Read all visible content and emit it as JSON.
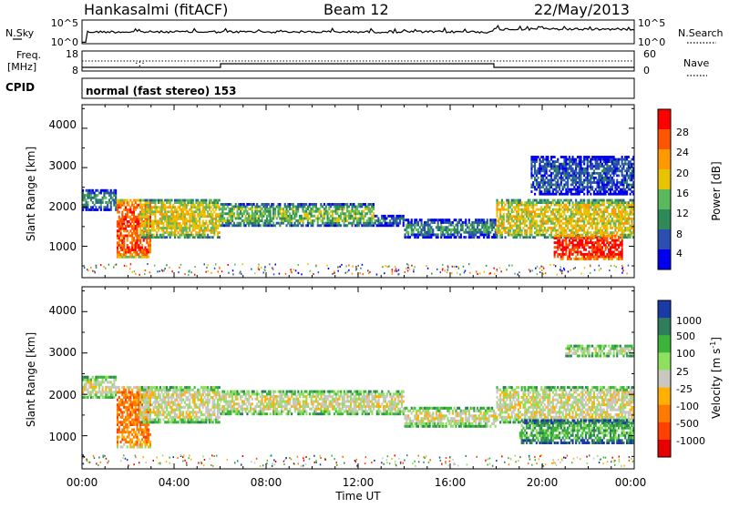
{
  "header": {
    "station": "Hankasalmi (fitACF)",
    "beam": "Beam 12",
    "date": "22/May/2013"
  },
  "top_panels": {
    "nsky_label": "N.Sky",
    "nsky_ticks": [
      "10^5",
      "10^0"
    ],
    "nsearch_ticks": [
      "10^5",
      "10^0"
    ],
    "nsearch_label": "N.Search",
    "freq_label_1": "Freq.",
    "freq_label_2": "[MHz]",
    "freq_ticks": [
      "18",
      "8"
    ],
    "nave_ticks": [
      "60",
      "0"
    ],
    "nave_label": "Nave",
    "cpid_label": "CPID",
    "cpid_text": "normal (fast stereo) 153"
  },
  "axes": {
    "ylabel": "Slant Range [km]",
    "xlabel": "Time UT",
    "x_ticks": [
      "00:00",
      "04:00",
      "08:00",
      "12:00",
      "16:00",
      "20:00",
      "00:00"
    ],
    "y_ticks": [
      "1000",
      "2000",
      "3000",
      "4000"
    ]
  },
  "colorbars": {
    "power": {
      "label": "Power [dB]",
      "ticks": [
        "4",
        "8",
        "12",
        "16",
        "20",
        "24",
        "28"
      ],
      "colors": [
        "#0000ee",
        "#2a4fb0",
        "#2e8b57",
        "#5cb85c",
        "#e8c400",
        "#ff9900",
        "#ff5500",
        "#ff0000"
      ]
    },
    "velocity": {
      "label_main": "Velocity [m s",
      "label_sup": "-1",
      "label_end": "]",
      "ticks": [
        "1000",
        "500",
        "100",
        "25",
        "-25",
        "-100",
        "-500",
        "-1000"
      ],
      "colors": [
        "#1a3aa8",
        "#2e7d5c",
        "#3cb43c",
        "#90e060",
        "#c8c8c0",
        "#ffb000",
        "#ff7a00",
        "#ff4000",
        "#e80000"
      ]
    }
  },
  "chart_data": [
    {
      "type": "heatmap",
      "name": "power",
      "x_range": [
        0,
        24
      ],
      "x_unit": "hours UT",
      "ylim": [
        200,
        4600
      ],
      "y_unit": "km",
      "bands": [
        {
          "x0": 0.0,
          "x1": 1.5,
          "y_lo": 1900,
          "y_hi": 2450,
          "level": 2
        },
        {
          "x0": 1.5,
          "x1": 3.0,
          "y_lo": 700,
          "y_hi": 2200,
          "level": 6
        },
        {
          "x0": 2.5,
          "x1": 6.0,
          "y_lo": 1200,
          "y_hi": 2200,
          "level": 4
        },
        {
          "x0": 6.0,
          "x1": 12.7,
          "y_lo": 1500,
          "y_hi": 2100,
          "level": 3
        },
        {
          "x0": 12.7,
          "x1": 14.0,
          "y_lo": 1500,
          "y_hi": 1800,
          "level": 2
        },
        {
          "x0": 14.0,
          "x1": 18.0,
          "y_lo": 1200,
          "y_hi": 1700,
          "level": 2
        },
        {
          "x0": 18.0,
          "x1": 24.0,
          "y_lo": 1200,
          "y_hi": 2200,
          "level": 4
        },
        {
          "x0": 20.5,
          "x1": 23.5,
          "y_lo": 650,
          "y_hi": 1300,
          "level": 7
        },
        {
          "x0": 19.5,
          "x1": 24.0,
          "y_lo": 2300,
          "y_hi": 3300,
          "level": 1
        }
      ]
    },
    {
      "type": "heatmap",
      "name": "velocity",
      "x_range": [
        0,
        24
      ],
      "x_unit": "hours UT",
      "ylim": [
        200,
        4600
      ],
      "y_unit": "km",
      "bands": [
        {
          "x0": 0.0,
          "x1": 1.5,
          "y_lo": 1900,
          "y_hi": 2450,
          "level": 4
        },
        {
          "x0": 1.5,
          "x1": 3.0,
          "y_lo": 700,
          "y_hi": 2200,
          "level": 6
        },
        {
          "x0": 2.5,
          "x1": 6.0,
          "y_lo": 1300,
          "y_hi": 2200,
          "level": 4
        },
        {
          "x0": 6.0,
          "x1": 14.0,
          "y_lo": 1500,
          "y_hi": 2100,
          "level": 4
        },
        {
          "x0": 14.0,
          "x1": 18.0,
          "y_lo": 1200,
          "y_hi": 1700,
          "level": 4
        },
        {
          "x0": 18.0,
          "x1": 24.0,
          "y_lo": 1300,
          "y_hi": 2200,
          "level": 4
        },
        {
          "x0": 19.0,
          "x1": 24.0,
          "y_lo": 800,
          "y_hi": 1400,
          "level": 2
        },
        {
          "x0": 21.0,
          "x1": 24.0,
          "y_lo": 2900,
          "y_hi": 3200,
          "level": 4
        }
      ]
    }
  ]
}
